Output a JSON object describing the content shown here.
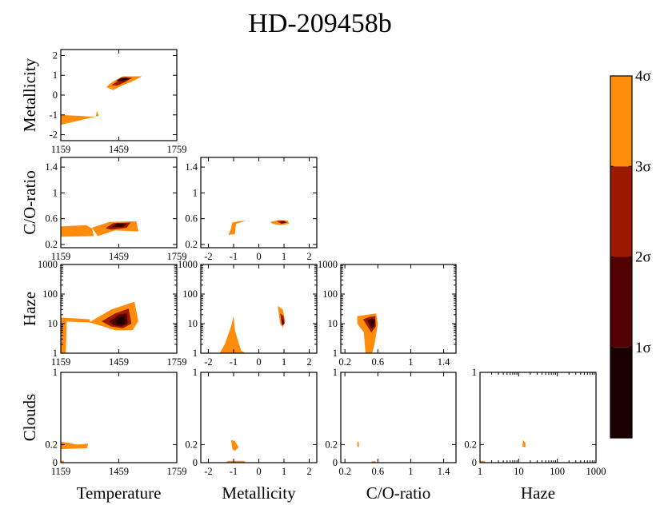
{
  "chart_data": {
    "type": "corner-contour",
    "title": "HD-209458b",
    "colors": {
      "sigma1": "#1a0000",
      "sigma2": "#520000",
      "sigma3": "#9b1a00",
      "sigma4": "#ff8c0a"
    },
    "colorbar": {
      "labels": [
        "4σ",
        "3σ",
        "2σ",
        "1σ"
      ],
      "levels": [
        4,
        3,
        2,
        1
      ]
    },
    "axes": {
      "temperature": {
        "label": "Temperature",
        "range": [
          1159,
          1759
        ],
        "ticks": [
          1159,
          1459,
          1759
        ],
        "tick_labels": [
          "1159",
          "1459",
          "1759"
        ],
        "scale": "linear"
      },
      "metallicity": {
        "label": "Metallicity",
        "range": [
          -2.3,
          2.3
        ],
        "ticks": [
          -2,
          -1,
          0,
          1,
          2
        ],
        "tick_labels": [
          "-2",
          "-1",
          "0",
          "1",
          "2"
        ],
        "scale": "linear"
      },
      "co_ratio": {
        "label": "C/O-ratio",
        "range": [
          0.15,
          1.55
        ],
        "ticks": [
          0.2,
          0.6,
          1,
          1.4
        ],
        "tick_labels": [
          "0.2",
          "0.6",
          "1",
          "1.4"
        ],
        "scale": "linear"
      },
      "haze": {
        "label": "Haze",
        "range": [
          1,
          1000
        ],
        "ticks": [
          1,
          10,
          100,
          1000
        ],
        "tick_labels": [
          "1",
          "10",
          "100",
          "1000"
        ],
        "scale": "log"
      },
      "clouds": {
        "label": "Clouds",
        "range": [
          0,
          1
        ],
        "ticks": [
          0,
          0.2,
          1
        ],
        "tick_labels": [
          "0",
          "0.2",
          "1"
        ],
        "scale": "linear"
      }
    },
    "panels": [
      {
        "x": "temperature",
        "y": "metallicity",
        "regions": [
          {
            "level": 4,
            "points": [
              [
                1159,
                -1.0
              ],
              [
                1340,
                -1.1
              ],
              [
                1345,
                -0.8
              ],
              [
                1355,
                -1.05
              ],
              [
                1159,
                -1.5
              ]
            ]
          },
          {
            "level": 4,
            "points": [
              [
                1410,
                0.55
              ],
              [
                1440,
                0.75
              ],
              [
                1480,
                0.95
              ],
              [
                1580,
                0.95
              ],
              [
                1530,
                0.7
              ],
              [
                1480,
                0.5
              ],
              [
                1430,
                0.25
              ],
              [
                1395,
                0.4
              ]
            ]
          },
          {
            "level": 3,
            "points": [
              [
                1420,
                0.5
              ],
              [
                1455,
                0.72
              ],
              [
                1490,
                0.9
              ],
              [
                1530,
                0.88
              ],
              [
                1490,
                0.65
              ],
              [
                1450,
                0.48
              ]
            ]
          },
          {
            "level": 2,
            "points": [
              [
                1445,
                0.72
              ],
              [
                1470,
                0.88
              ],
              [
                1500,
                0.9
              ],
              [
                1515,
                0.82
              ],
              [
                1485,
                0.7
              ]
            ]
          },
          {
            "level": 1,
            "points": [
              [
                1465,
                0.76
              ],
              [
                1485,
                0.85
              ],
              [
                1505,
                0.84
              ],
              [
                1490,
                0.76
              ]
            ]
          }
        ]
      },
      {
        "x": "temperature",
        "y": "co_ratio",
        "regions": [
          {
            "level": 4,
            "points": [
              [
                1159,
                0.48
              ],
              [
                1290,
                0.5
              ],
              [
                1320,
                0.45
              ],
              [
                1330,
                0.33
              ],
              [
                1159,
                0.32
              ]
            ]
          },
          {
            "level": 4,
            "points": [
              [
                1320,
                0.46
              ],
              [
                1410,
                0.55
              ],
              [
                1550,
                0.56
              ],
              [
                1560,
                0.4
              ],
              [
                1440,
                0.42
              ],
              [
                1350,
                0.33
              ]
            ]
          },
          {
            "level": 3,
            "points": [
              [
                1390,
                0.45
              ],
              [
                1430,
                0.53
              ],
              [
                1520,
                0.54
              ],
              [
                1500,
                0.46
              ],
              [
                1420,
                0.43
              ]
            ]
          },
          {
            "level": 2,
            "points": [
              [
                1420,
                0.47
              ],
              [
                1450,
                0.53
              ],
              [
                1500,
                0.52
              ],
              [
                1480,
                0.47
              ]
            ]
          },
          {
            "level": 1,
            "points": [
              [
                1440,
                0.49
              ],
              [
                1460,
                0.52
              ],
              [
                1485,
                0.51
              ],
              [
                1470,
                0.48
              ]
            ]
          }
        ]
      },
      {
        "x": "metallicity",
        "y": "co_ratio",
        "regions": [
          {
            "level": 4,
            "points": [
              [
                -1.05,
                0.54
              ],
              [
                -0.8,
                0.56
              ],
              [
                -0.5,
                0.57
              ],
              [
                -0.9,
                0.52
              ],
              [
                -0.95,
                0.36
              ],
              [
                -1.2,
                0.35
              ],
              [
                -1.1,
                0.45
              ]
            ]
          },
          {
            "level": 4,
            "points": [
              [
                0.45,
                0.55
              ],
              [
                0.8,
                0.58
              ],
              [
                1.15,
                0.57
              ],
              [
                1.2,
                0.52
              ],
              [
                0.85,
                0.5
              ],
              [
                0.55,
                0.52
              ]
            ]
          },
          {
            "level": 3,
            "points": [
              [
                0.7,
                0.56
              ],
              [
                1.0,
                0.57
              ],
              [
                1.12,
                0.54
              ],
              [
                0.9,
                0.52
              ]
            ]
          },
          {
            "level": 2,
            "points": [
              [
                0.85,
                0.56
              ],
              [
                1.02,
                0.56
              ],
              [
                1.05,
                0.54
              ],
              [
                0.9,
                0.535
              ]
            ]
          }
        ]
      },
      {
        "x": "temperature",
        "y": "haze",
        "regions": [
          {
            "level": 4,
            "points": [
              [
                1159,
                1
              ],
              [
                1185,
                1
              ],
              [
                1190,
                14
              ],
              [
                1159,
                16
              ]
            ]
          },
          {
            "level": 4,
            "points": [
              [
                1159,
                16
              ],
              [
                1310,
                14
              ],
              [
                1310,
                11
              ],
              [
                1159,
                12
              ]
            ]
          },
          {
            "level": 4,
            "points": [
              [
                1305,
                11
              ],
              [
                1420,
                30
              ],
              [
                1540,
                55
              ],
              [
                1560,
                12
              ],
              [
                1530,
                6
              ],
              [
                1440,
                6
              ],
              [
                1330,
                10
              ]
            ]
          },
          {
            "level": 3,
            "points": [
              [
                1370,
                12
              ],
              [
                1440,
                22
              ],
              [
                1510,
                32
              ],
              [
                1525,
                10
              ],
              [
                1480,
                7
              ],
              [
                1420,
                8
              ]
            ]
          },
          {
            "level": 2,
            "points": [
              [
                1410,
                12
              ],
              [
                1460,
                20
              ],
              [
                1500,
                22
              ],
              [
                1505,
                10
              ],
              [
                1470,
                8
              ],
              [
                1430,
                9
              ]
            ]
          },
          {
            "level": 1,
            "points": [
              [
                1440,
                12
              ],
              [
                1470,
                17
              ],
              [
                1490,
                16
              ],
              [
                1488,
                10
              ],
              [
                1460,
                9
              ]
            ]
          }
        ]
      },
      {
        "x": "metallicity",
        "y": "haze",
        "regions": [
          {
            "level": 4,
            "points": [
              [
                -1.55,
                1
              ],
              [
                -1.35,
                2
              ],
              [
                -1.1,
                8
              ],
              [
                -1.0,
                18
              ],
              [
                -0.95,
                6
              ],
              [
                -0.7,
                1.2
              ],
              [
                -0.5,
                1
              ]
            ]
          },
          {
            "level": 4,
            "points": [
              [
                0.75,
                40
              ],
              [
                0.95,
                30
              ],
              [
                1.05,
                12
              ],
              [
                0.95,
                7.5
              ],
              [
                0.85,
                10
              ]
            ]
          },
          {
            "level": 3,
            "points": [
              [
                0.85,
                22
              ],
              [
                0.98,
                18
              ],
              [
                1.02,
                10
              ],
              [
                0.92,
                8.5
              ]
            ]
          },
          {
            "level": 2,
            "points": [
              [
                0.9,
                14
              ],
              [
                0.98,
                13
              ],
              [
                1.0,
                10
              ],
              [
                0.93,
                9.5
              ]
            ]
          }
        ]
      },
      {
        "x": "co_ratio",
        "y": "haze",
        "regions": [
          {
            "level": 4,
            "points": [
              [
                0.35,
                18
              ],
              [
                0.47,
                20
              ],
              [
                0.58,
                22
              ],
              [
                0.6,
                10
              ],
              [
                0.56,
                2
              ],
              [
                0.53,
                1
              ],
              [
                0.45,
                1
              ],
              [
                0.43,
                5
              ],
              [
                0.35,
                10
              ]
            ]
          },
          {
            "level": 3,
            "points": [
              [
                0.42,
                14
              ],
              [
                0.5,
                17
              ],
              [
                0.57,
                18
              ],
              [
                0.575,
                8
              ],
              [
                0.52,
                5
              ]
            ]
          },
          {
            "level": 2,
            "points": [
              [
                0.47,
                13
              ],
              [
                0.53,
                15
              ],
              [
                0.565,
                14
              ],
              [
                0.56,
                8
              ],
              [
                0.52,
                7
              ]
            ]
          },
          {
            "level": 1,
            "points": [
              [
                0.5,
                12
              ],
              [
                0.54,
                13
              ],
              [
                0.56,
                11
              ],
              [
                0.53,
                9
              ]
            ]
          }
        ]
      },
      {
        "x": "temperature",
        "y": "clouds",
        "regions": [
          {
            "level": 4,
            "points": [
              [
                1159,
                0.23
              ],
              [
                1200,
                0.22
              ],
              [
                1240,
                0.2
              ],
              [
                1300,
                0.21
              ],
              [
                1295,
                0.16
              ],
              [
                1159,
                0.15
              ]
            ]
          },
          {
            "level": 4,
            "points": [
              [
                1159,
                0.0
              ],
              [
                1175,
                0.0
              ],
              [
                1175,
                0.02
              ],
              [
                1159,
                0.02
              ]
            ]
          }
        ]
      },
      {
        "x": "metallicity",
        "y": "clouds",
        "regions": [
          {
            "level": 4,
            "points": [
              [
                -1.1,
                0.25
              ],
              [
                -0.95,
                0.24
              ],
              [
                -0.8,
                0.17
              ],
              [
                -0.95,
                0.13
              ],
              [
                -1.05,
                0.15
              ]
            ]
          },
          {
            "level": 4,
            "points": [
              [
                -1.35,
                0.0
              ],
              [
                -0.5,
                0.0
              ],
              [
                -0.6,
                0.02
              ],
              [
                -1.2,
                0.02
              ]
            ]
          }
        ]
      },
      {
        "x": "co_ratio",
        "y": "clouds",
        "regions": [
          {
            "level": 4,
            "points": [
              [
                0.35,
                0.24
              ],
              [
                0.37,
                0.22
              ],
              [
                0.37,
                0.17
              ],
              [
                0.35,
                0.18
              ]
            ]
          },
          {
            "level": 4,
            "points": [
              [
                0.52,
                0.0
              ],
              [
                0.58,
                0.0
              ],
              [
                0.57,
                0.015
              ],
              [
                0.53,
                0.015
              ]
            ]
          }
        ]
      },
      {
        "x": "haze",
        "y": "clouds",
        "regions": [
          {
            "level": 4,
            "points": [
              [
                13,
                0.25
              ],
              [
                15,
                0.22
              ],
              [
                15,
                0.17
              ],
              [
                12.5,
                0.18
              ]
            ]
          },
          {
            "level": 4,
            "points": [
              [
                1,
                0.0
              ],
              [
                1.4,
                0.0
              ],
              [
                1.3,
                0.02
              ],
              [
                1,
                0.02
              ]
            ]
          }
        ]
      }
    ]
  }
}
